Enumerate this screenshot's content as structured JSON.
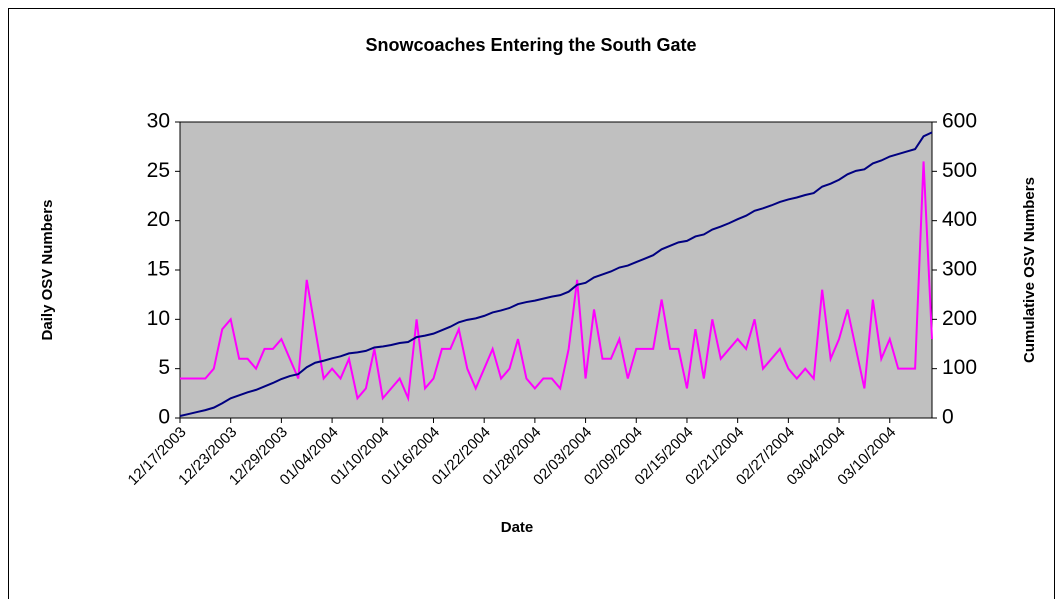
{
  "chart_data": {
    "type": "line",
    "title": "Snowcoaches Entering the South Gate",
    "x_label": "Date",
    "y_label": "Daily OSV Numbers",
    "y2_label": "Cumulative OSV Numbers",
    "categories": [
      "12/17/2003",
      null,
      null,
      null,
      null,
      null,
      "12/23/2003",
      null,
      null,
      null,
      null,
      null,
      "12/29/2003",
      null,
      null,
      null,
      null,
      null,
      "01/04/2004",
      null,
      null,
      null,
      null,
      null,
      "01/10/2004",
      null,
      null,
      null,
      null,
      null,
      "01/16/2004",
      null,
      null,
      null,
      null,
      null,
      "01/22/2004",
      null,
      null,
      null,
      null,
      null,
      "01/28/2004",
      null,
      null,
      null,
      null,
      null,
      "02/03/2004",
      null,
      null,
      null,
      null,
      null,
      "02/09/2004",
      null,
      null,
      null,
      null,
      null,
      "02/15/2004",
      null,
      null,
      null,
      null,
      null,
      "02/21/2004",
      null,
      null,
      null,
      null,
      null,
      "02/27/2004",
      null,
      null,
      null,
      null,
      null,
      "03/04/2004",
      null,
      null,
      null,
      null,
      null,
      "03/10/2004",
      null,
      null,
      null,
      null,
      null
    ],
    "series": [
      {
        "name": "Daily OSV Numbers",
        "color": "#ff00ff",
        "axis": "y",
        "values": [
          4,
          4,
          4,
          4,
          5,
          9,
          10,
          6,
          6,
          5,
          7,
          7,
          8,
          6,
          4,
          14,
          9,
          4,
          5,
          4,
          6,
          2,
          3,
          7,
          2,
          3,
          4,
          2,
          10,
          3,
          4,
          7,
          7,
          9,
          5,
          3,
          5,
          7,
          4,
          5,
          8,
          4,
          3,
          4,
          4,
          3,
          7,
          14,
          4,
          11,
          6,
          6,
          8,
          4,
          7,
          7,
          7,
          12,
          7,
          7,
          3,
          9,
          4,
          10,
          6,
          7,
          8,
          7,
          10,
          5,
          6,
          7,
          5,
          4,
          5,
          4,
          13,
          6,
          8,
          11,
          7,
          3,
          12,
          6,
          8,
          5,
          5,
          5,
          26,
          8
        ]
      },
      {
        "name": "Cumulative OSV Numbers",
        "color": "#000080",
        "axis": "y2",
        "values": [
          4,
          8,
          12,
          16,
          21,
          30,
          40,
          46,
          52,
          57,
          64,
          71,
          79,
          85,
          89,
          103,
          112,
          116,
          121,
          125,
          131,
          133,
          136,
          143,
          145,
          148,
          152,
          154,
          164,
          167,
          171,
          178,
          185,
          194,
          199,
          202,
          207,
          214,
          218,
          223,
          231,
          235,
          238,
          242,
          246,
          249,
          256,
          270,
          274,
          285,
          291,
          297,
          305,
          309,
          316,
          323,
          330,
          342,
          349,
          356,
          359,
          368,
          372,
          382,
          388,
          395,
          403,
          410,
          420,
          425,
          431,
          438,
          443,
          447,
          452,
          456,
          469,
          475,
          483,
          494,
          501,
          504,
          516,
          522,
          530,
          535,
          540,
          545,
          571,
          579
        ]
      }
    ],
    "ylim": [
      0,
      30
    ],
    "yticks": [
      0,
      5,
      10,
      15,
      20,
      25,
      30
    ],
    "y2lim": [
      0,
      600
    ],
    "y2ticks": [
      0,
      100,
      200,
      300,
      400,
      500,
      600
    ],
    "plot_background": "#c0c0c0"
  }
}
